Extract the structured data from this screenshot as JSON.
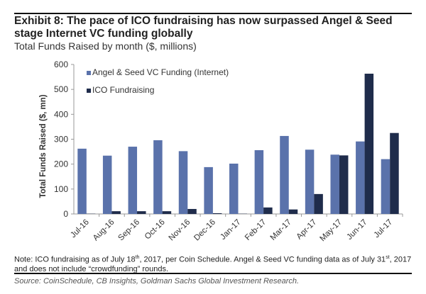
{
  "title": "Exhibit 8: The pace of ICO fundraising has now surpassed Angel & Seed stage Internet VC funding globally",
  "subtitle": "Total Funds Raised by month ($, millions)",
  "note": {
    "part1": "Note: ICO fundraising as of July 18",
    "sup1": "th",
    "part2": ", 2017, per Coin Schedule. Angel & Seed VC funding data as of July 31",
    "sup2": "st",
    "part3": ", 2017 and does not include “crowdfunding” rounds."
  },
  "source": "Source: CoinSchedule, CB Insights, Goldman Sachs Global Investment Research.",
  "colors": {
    "angel": "#5a72ab",
    "ico": "#1f2c4b",
    "axis": "#999999"
  },
  "chart_data": {
    "type": "bar",
    "title": "Exhibit 8: The pace of ICO fundraising has now surpassed Angel & Seed stage Internet VC funding globally",
    "subtitle": "Total Funds Raised by month ($, millions)",
    "xlabel": "",
    "ylabel": "Total Funds Raised ($, mn)",
    "ylim": [
      0,
      600
    ],
    "yticks": [
      "0",
      "100",
      "200",
      "300",
      "400",
      "500",
      "600"
    ],
    "legend_position": "top-left",
    "grid": false,
    "categories": [
      "Jul-16",
      "Aug-16",
      "Sep-16",
      "Oct-16",
      "Nov-16",
      "Dec-16",
      "Jan-17",
      "Feb-17",
      "Mar-17",
      "Apr-17",
      "May-17",
      "Jun-17",
      "Jul-17"
    ],
    "series": [
      {
        "name": "Angel & Seed VC Funding (Internet)",
        "values": [
          262,
          234,
          270,
          296,
          252,
          188,
          202,
          256,
          313,
          258,
          238,
          291,
          220
        ]
      },
      {
        "name": "ICO Fundraising",
        "values": [
          1,
          11,
          11,
          11,
          20,
          3,
          1,
          26,
          18,
          80,
          235,
          563,
          325
        ]
      }
    ]
  }
}
